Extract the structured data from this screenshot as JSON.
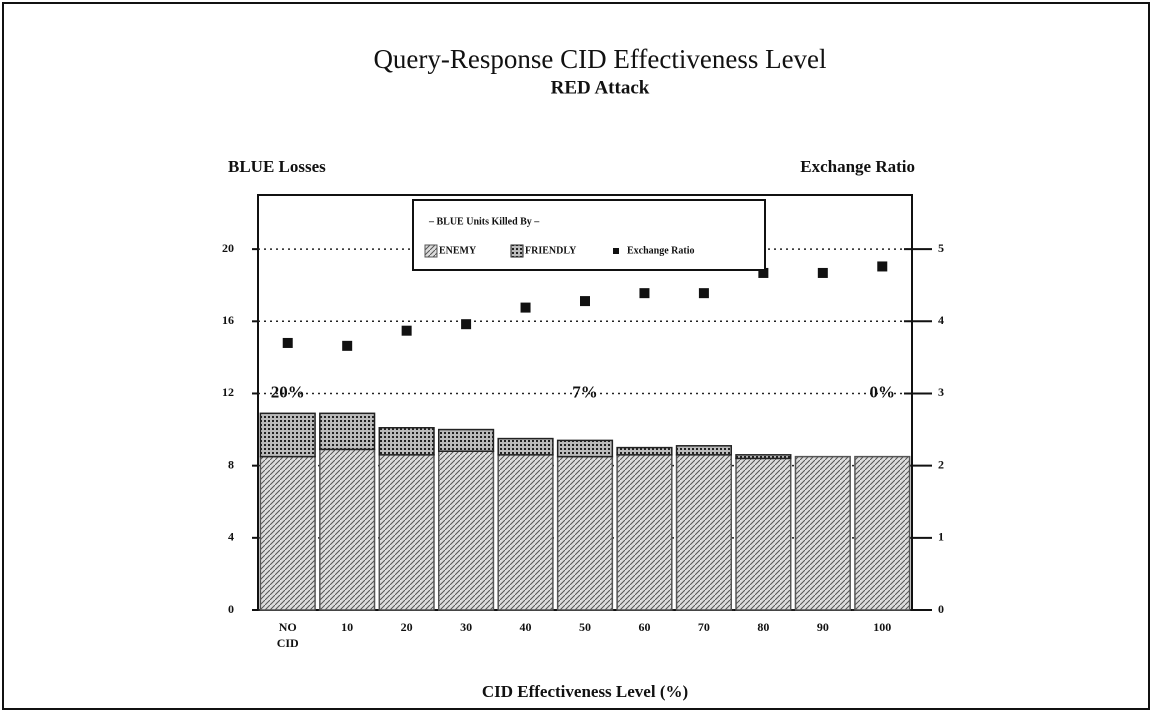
{
  "chart_data": {
    "type": "bar",
    "stacked": true,
    "title": "Query-Response CID Effectiveness Level",
    "subtitle": "RED Attack",
    "y_label": "BLUE Losses",
    "y2_label": "Exchange Ratio",
    "x_label": "CID Effectiveness Level (%)",
    "legend_title": "– BLUE Units Killed By –",
    "categories": [
      "NO CID",
      "10",
      "20",
      "30",
      "40",
      "50",
      "60",
      "70",
      "80",
      "90",
      "100"
    ],
    "series": [
      {
        "name": "ENEMY",
        "color": "#555555",
        "values": [
          8.5,
          8.9,
          8.6,
          8.8,
          8.6,
          8.5,
          8.6,
          8.6,
          8.4,
          8.5,
          8.5
        ]
      },
      {
        "name": "FRIENDLY",
        "color": "#222222",
        "values": [
          2.4,
          2.0,
          1.5,
          1.2,
          0.9,
          0.9,
          0.4,
          0.5,
          0.2,
          0,
          0
        ]
      },
      {
        "name": "Exchange Ratio",
        "type": "scatter",
        "axis": "y2",
        "color": "#111111",
        "values": [
          3.7,
          3.66,
          3.87,
          3.96,
          4.19,
          4.28,
          4.39,
          4.39,
          4.67,
          4.67,
          4.76
        ]
      }
    ],
    "ylim": [
      0,
      23
    ],
    "yticks": [
      0,
      4,
      8,
      12,
      16,
      20
    ],
    "y2lim": [
      0,
      5.75
    ],
    "y2ticks": [
      0,
      1,
      2,
      3,
      4,
      5
    ],
    "grid": true,
    "legend": "top",
    "annotations": [
      {
        "text": "20%",
        "x": "NO CID",
        "y": 12
      },
      {
        "text": "7%",
        "x": "50",
        "y": 12
      },
      {
        "text": "0%",
        "x": "100",
        "y": 12
      }
    ]
  }
}
